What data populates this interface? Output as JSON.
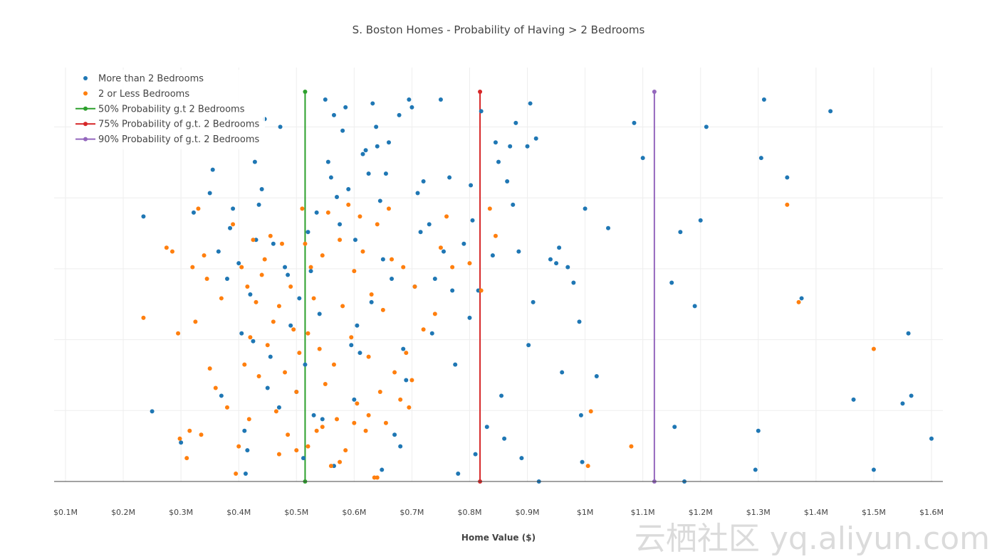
{
  "chart_data": {
    "type": "scatter",
    "title": "S. Boston Homes - Probability of Having > 2 Bedrooms",
    "xlabel": "Home Value ($)",
    "ylabel": "",
    "xlim": [
      0.1,
      1.6
    ],
    "ylim": [
      0,
      1
    ],
    "grid": true,
    "legend_position": "top-left",
    "x_ticks": [
      {
        "value": 0.1,
        "label": "$0.1M"
      },
      {
        "value": 0.2,
        "label": "$0.2M"
      },
      {
        "value": 0.3,
        "label": "$0.3M"
      },
      {
        "value": 0.4,
        "label": "$0.4M"
      },
      {
        "value": 0.5,
        "label": "$0.5M"
      },
      {
        "value": 0.6,
        "label": "$0.6M"
      },
      {
        "value": 0.7,
        "label": "$0.7M"
      },
      {
        "value": 0.8,
        "label": "$0.8M"
      },
      {
        "value": 0.9,
        "label": "$0.9M"
      },
      {
        "value": 1.0,
        "label": "$1M"
      },
      {
        "value": 1.1,
        "label": "$1.1M"
      },
      {
        "value": 1.2,
        "label": "$1.2M"
      },
      {
        "value": 1.3,
        "label": "$1.3M"
      },
      {
        "value": 1.4,
        "label": "$1.4M"
      },
      {
        "value": 1.5,
        "label": "$1.5M"
      },
      {
        "value": 1.6,
        "label": "$1.6M"
      }
    ],
    "series": [
      {
        "name": "More than 2 Bedrooms",
        "kind": "scatter",
        "color": "#1f77b4",
        "points": [
          [
            0.235,
            0.68
          ],
          [
            0.25,
            0.18
          ],
          [
            0.3,
            0.1
          ],
          [
            0.322,
            0.69
          ],
          [
            0.35,
            0.74
          ],
          [
            0.355,
            0.8
          ],
          [
            0.365,
            0.59
          ],
          [
            0.37,
            0.22
          ],
          [
            0.38,
            0.52
          ],
          [
            0.385,
            0.65
          ],
          [
            0.39,
            0.7
          ],
          [
            0.4,
            0.56
          ],
          [
            0.405,
            0.38
          ],
          [
            0.41,
            0.13
          ],
          [
            0.412,
            0.02
          ],
          [
            0.415,
            0.08
          ],
          [
            0.42,
            0.48
          ],
          [
            0.425,
            0.36
          ],
          [
            0.428,
            0.82
          ],
          [
            0.43,
            0.62
          ],
          [
            0.435,
            0.71
          ],
          [
            0.44,
            0.75
          ],
          [
            0.445,
            0.93
          ],
          [
            0.45,
            0.24
          ],
          [
            0.455,
            0.32
          ],
          [
            0.46,
            0.61
          ],
          [
            0.47,
            0.19
          ],
          [
            0.472,
            0.91
          ],
          [
            0.48,
            0.55
          ],
          [
            0.485,
            0.53
          ],
          [
            0.49,
            0.4
          ],
          [
            0.5,
            0.23
          ],
          [
            0.505,
            0.47
          ],
          [
            0.512,
            0.06
          ],
          [
            0.515,
            0.3
          ],
          [
            0.52,
            0.64
          ],
          [
            0.525,
            0.54
          ],
          [
            0.53,
            0.17
          ],
          [
            0.535,
            0.69
          ],
          [
            0.54,
            0.43
          ],
          [
            0.545,
            0.16
          ],
          [
            0.55,
            0.98
          ],
          [
            0.555,
            0.82
          ],
          [
            0.56,
            0.78
          ],
          [
            0.565,
            0.94
          ],
          [
            0.57,
            0.73
          ],
          [
            0.575,
            0.66
          ],
          [
            0.58,
            0.9
          ],
          [
            0.585,
            0.96
          ],
          [
            0.59,
            0.75
          ],
          [
            0.595,
            0.35
          ],
          [
            0.6,
            0.21
          ],
          [
            0.602,
            0.62
          ],
          [
            0.605,
            0.4
          ],
          [
            0.61,
            0.33
          ],
          [
            0.615,
            0.84
          ],
          [
            0.62,
            0.85
          ],
          [
            0.625,
            0.79
          ],
          [
            0.63,
            0.46
          ],
          [
            0.632,
            0.97
          ],
          [
            0.638,
            0.91
          ],
          [
            0.64,
            0.86
          ],
          [
            0.645,
            0.72
          ],
          [
            0.648,
            0.03
          ],
          [
            0.65,
            0.57
          ],
          [
            0.655,
            0.79
          ],
          [
            0.66,
            0.87
          ],
          [
            0.665,
            0.52
          ],
          [
            0.67,
            0.12
          ],
          [
            0.678,
            0.94
          ],
          [
            0.68,
            0.09
          ],
          [
            0.685,
            0.34
          ],
          [
            0.69,
            0.26
          ],
          [
            0.695,
            0.98
          ],
          [
            0.7,
            0.96
          ],
          [
            0.705,
            0.5
          ],
          [
            0.71,
            0.74
          ],
          [
            0.715,
            0.64
          ],
          [
            0.72,
            0.77
          ],
          [
            0.73,
            0.66
          ],
          [
            0.735,
            0.38
          ],
          [
            0.74,
            0.52
          ],
          [
            0.75,
            0.98
          ],
          [
            0.755,
            0.59
          ],
          [
            0.765,
            0.78
          ],
          [
            0.77,
            0.49
          ],
          [
            0.775,
            0.3
          ],
          [
            0.78,
            0.02
          ],
          [
            0.79,
            0.61
          ],
          [
            0.8,
            0.42
          ],
          [
            0.802,
            0.76
          ],
          [
            0.805,
            0.67
          ],
          [
            0.81,
            0.07
          ],
          [
            0.815,
            0.49
          ],
          [
            0.82,
            0.95
          ],
          [
            0.83,
            0.14
          ],
          [
            0.84,
            0.58
          ],
          [
            0.845,
            0.87
          ],
          [
            0.85,
            0.82
          ],
          [
            0.855,
            0.22
          ],
          [
            0.86,
            0.11
          ],
          [
            0.865,
            0.77
          ],
          [
            0.87,
            0.86
          ],
          [
            0.875,
            0.71
          ],
          [
            0.88,
            0.92
          ],
          [
            0.885,
            0.59
          ],
          [
            0.89,
            0.06
          ],
          [
            0.9,
            0.86
          ],
          [
            0.902,
            0.35
          ],
          [
            0.905,
            0.97
          ],
          [
            0.91,
            0.46
          ],
          [
            0.915,
            0.88
          ],
          [
            0.92,
            0.0
          ],
          [
            0.94,
            0.57
          ],
          [
            0.95,
            0.56
          ],
          [
            0.955,
            0.6
          ],
          [
            0.96,
            0.28
          ],
          [
            0.97,
            0.55
          ],
          [
            0.98,
            0.51
          ],
          [
            0.99,
            0.41
          ],
          [
            0.993,
            0.17
          ],
          [
            0.995,
            0.05
          ],
          [
            1.0,
            0.7
          ],
          [
            1.02,
            0.27
          ],
          [
            1.04,
            0.65
          ],
          [
            1.085,
            0.92
          ],
          [
            1.1,
            0.83
          ],
          [
            1.15,
            0.51
          ],
          [
            1.155,
            0.14
          ],
          [
            1.165,
            0.64
          ],
          [
            1.19,
            0.45
          ],
          [
            1.2,
            0.67
          ],
          [
            1.21,
            0.91
          ],
          [
            1.295,
            0.03
          ],
          [
            1.3,
            0.13
          ],
          [
            1.305,
            0.83
          ],
          [
            1.31,
            0.98
          ],
          [
            1.35,
            0.78
          ],
          [
            1.375,
            0.47
          ],
          [
            1.425,
            0.95
          ],
          [
            1.465,
            0.21
          ],
          [
            1.5,
            0.03
          ],
          [
            1.55,
            0.2
          ],
          [
            1.56,
            0.38
          ],
          [
            1.565,
            0.22
          ],
          [
            1.6,
            0.11
          ],
          [
            1.172,
            0.0
          ],
          [
            0.565,
            0.04
          ]
        ]
      },
      {
        "name": "2 or Less Bedrooms",
        "kind": "scatter",
        "color": "#ff7f0e",
        "points": [
          [
            0.235,
            0.42
          ],
          [
            0.275,
            0.6
          ],
          [
            0.285,
            0.59
          ],
          [
            0.295,
            0.38
          ],
          [
            0.298,
            0.11
          ],
          [
            0.31,
            0.06
          ],
          [
            0.315,
            0.13
          ],
          [
            0.32,
            0.55
          ],
          [
            0.325,
            0.41
          ],
          [
            0.33,
            0.7
          ],
          [
            0.335,
            0.12
          ],
          [
            0.34,
            0.58
          ],
          [
            0.345,
            0.52
          ],
          [
            0.35,
            0.29
          ],
          [
            0.36,
            0.24
          ],
          [
            0.37,
            0.47
          ],
          [
            0.38,
            0.19
          ],
          [
            0.39,
            0.66
          ],
          [
            0.395,
            0.02
          ],
          [
            0.4,
            0.09
          ],
          [
            0.405,
            0.55
          ],
          [
            0.41,
            0.3
          ],
          [
            0.415,
            0.5
          ],
          [
            0.418,
            0.16
          ],
          [
            0.42,
            0.37
          ],
          [
            0.425,
            0.62
          ],
          [
            0.43,
            0.46
          ],
          [
            0.435,
            0.27
          ],
          [
            0.44,
            0.53
          ],
          [
            0.445,
            0.57
          ],
          [
            0.45,
            0.35
          ],
          [
            0.455,
            0.63
          ],
          [
            0.46,
            0.41
          ],
          [
            0.465,
            0.18
          ],
          [
            0.47,
            0.07
          ],
          [
            0.475,
            0.61
          ],
          [
            0.48,
            0.28
          ],
          [
            0.485,
            0.12
          ],
          [
            0.49,
            0.5
          ],
          [
            0.495,
            0.39
          ],
          [
            0.5,
            0.23
          ],
          [
            0.505,
            0.33
          ],
          [
            0.51,
            0.7
          ],
          [
            0.515,
            0.61
          ],
          [
            0.52,
            0.09
          ],
          [
            0.525,
            0.55
          ],
          [
            0.53,
            0.47
          ],
          [
            0.535,
            0.13
          ],
          [
            0.54,
            0.34
          ],
          [
            0.545,
            0.58
          ],
          [
            0.55,
            0.25
          ],
          [
            0.555,
            0.69
          ],
          [
            0.56,
            0.04
          ],
          [
            0.565,
            0.3
          ],
          [
            0.57,
            0.16
          ],
          [
            0.575,
            0.62
          ],
          [
            0.58,
            0.45
          ],
          [
            0.585,
            0.08
          ],
          [
            0.59,
            0.71
          ],
          [
            0.595,
            0.37
          ],
          [
            0.6,
            0.54
          ],
          [
            0.605,
            0.2
          ],
          [
            0.61,
            0.68
          ],
          [
            0.615,
            0.59
          ],
          [
            0.62,
            0.13
          ],
          [
            0.625,
            0.32
          ],
          [
            0.63,
            0.48
          ],
          [
            0.635,
            0.01
          ],
          [
            0.64,
            0.66
          ],
          [
            0.645,
            0.23
          ],
          [
            0.65,
            0.44
          ],
          [
            0.655,
            0.15
          ],
          [
            0.66,
            0.7
          ],
          [
            0.665,
            0.57
          ],
          [
            0.67,
            0.28
          ],
          [
            0.68,
            0.21
          ],
          [
            0.685,
            0.55
          ],
          [
            0.69,
            0.33
          ],
          [
            0.695,
            0.19
          ],
          [
            0.7,
            0.26
          ],
          [
            0.705,
            0.5
          ],
          [
            0.72,
            0.39
          ],
          [
            0.74,
            0.43
          ],
          [
            0.75,
            0.6
          ],
          [
            0.76,
            0.68
          ],
          [
            0.77,
            0.55
          ],
          [
            0.8,
            0.56
          ],
          [
            0.82,
            0.49
          ],
          [
            0.835,
            0.7
          ],
          [
            0.845,
            0.63
          ],
          [
            1.005,
            0.04
          ],
          [
            1.01,
            0.18
          ],
          [
            1.08,
            0.09
          ],
          [
            1.35,
            0.71
          ],
          [
            1.37,
            0.46
          ],
          [
            1.5,
            0.34
          ],
          [
            0.5,
            0.08
          ],
          [
            0.52,
            0.38
          ],
          [
            0.545,
            0.14
          ],
          [
            0.575,
            0.05
          ],
          [
            0.6,
            0.15
          ],
          [
            0.625,
            0.17
          ],
          [
            0.64,
            0.01
          ],
          [
            0.47,
            0.45
          ]
        ]
      },
      {
        "name": "50% Probability g.t 2 Bedrooms",
        "kind": "vline",
        "color": "#2ca02c",
        "x": 0.515
      },
      {
        "name": "75% Probability of g.t. 2 Bedrooms",
        "kind": "vline",
        "color": "#d62728",
        "x": 0.818
      },
      {
        "name": "90% Probability of g.t. 2 Bedrooms",
        "kind": "vline",
        "color": "#9467bd",
        "x": 1.12
      }
    ]
  },
  "watermark": "云栖社区 yq.aliyun.com"
}
